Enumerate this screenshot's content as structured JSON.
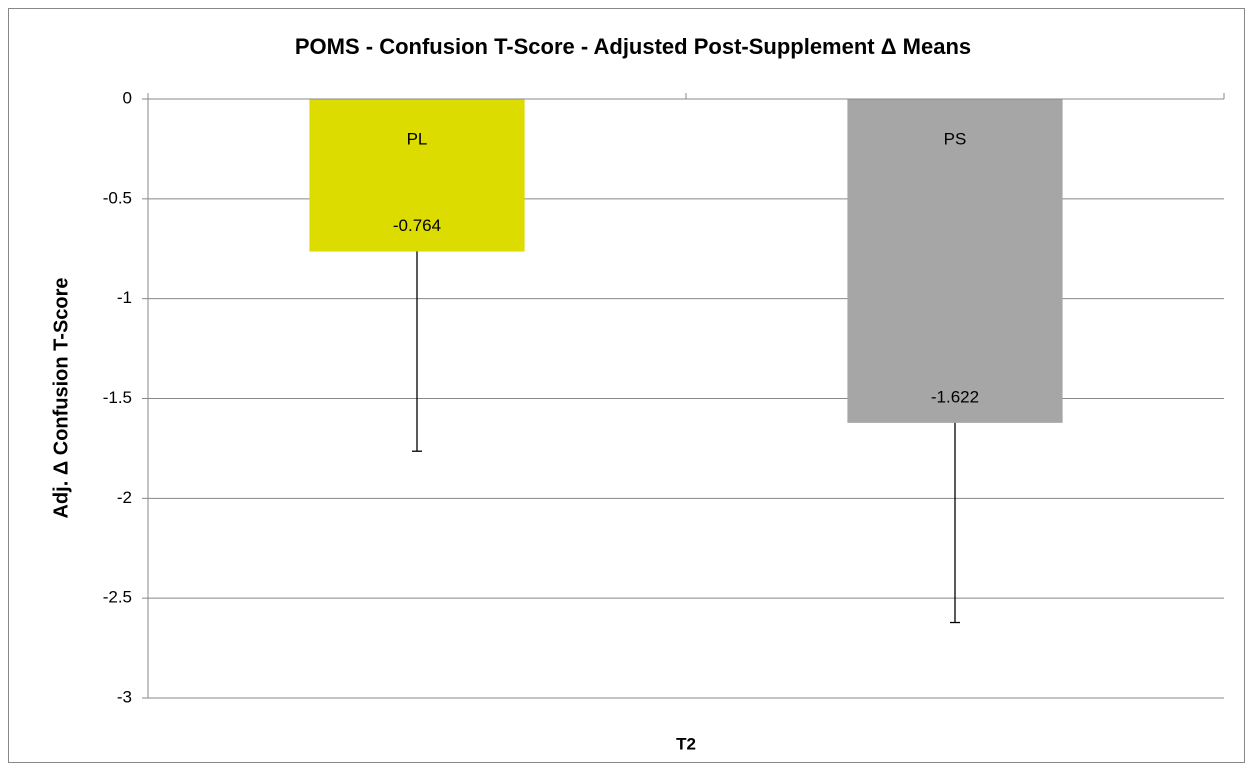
{
  "chart_data": {
    "type": "bar",
    "title": "POMS - Confusion T-Score - Adjusted Post-Supplement Δ Means",
    "y_label": "Adj. Δ Confusion T-Score",
    "categories": [
      "T2"
    ],
    "series": [
      {
        "name": "PL",
        "color": "#dcdc00",
        "values": [
          -0.764
        ],
        "errors": [
          1.0
        ]
      },
      {
        "name": "PS",
        "color": "#a6a6a6",
        "values": [
          -1.622
        ],
        "errors": [
          1.0
        ]
      }
    ],
    "ylim": [
      -3,
      0
    ],
    "yticks": [
      0,
      -0.5,
      -1,
      -1.5,
      -2,
      -2.5,
      -3
    ],
    "grid": true
  }
}
